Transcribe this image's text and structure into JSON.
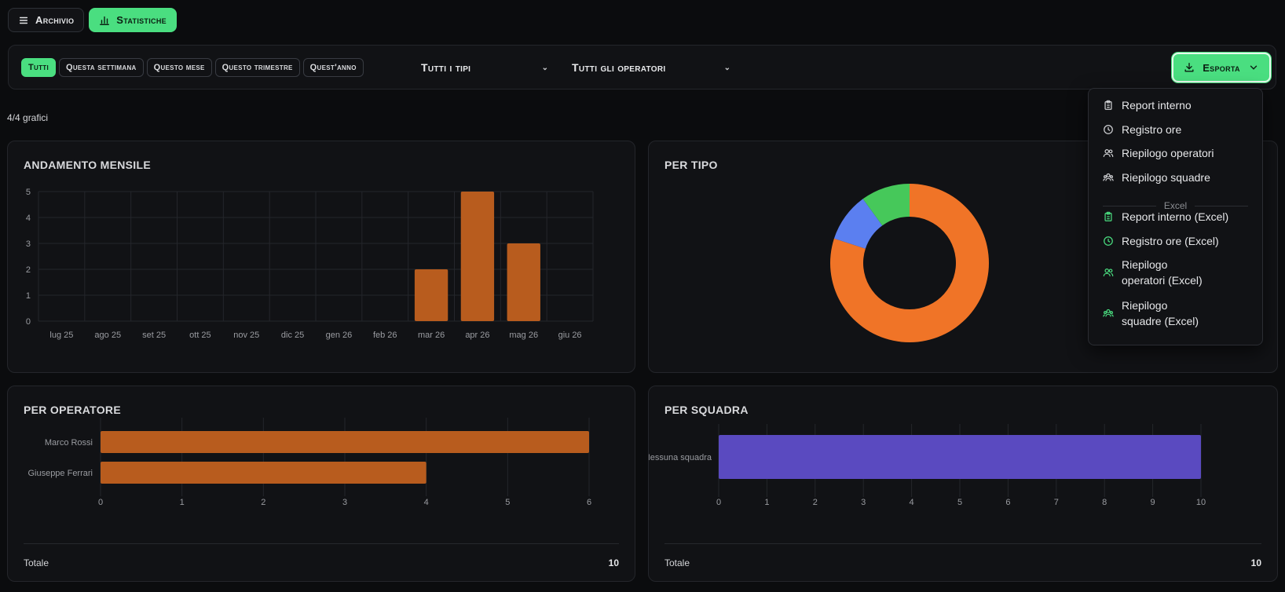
{
  "view_tabs": [
    {
      "label": "Archivio",
      "icon": "list-icon",
      "active": false
    },
    {
      "label": "Statistiche",
      "icon": "bar-chart-icon",
      "active": true
    }
  ],
  "filters": {
    "periods": [
      "Tutti",
      "Questa settimana",
      "Questo mese",
      "Questo trimestre",
      "Quest'anno"
    ],
    "active_period": "Tutti",
    "type_select": "Tutti i tipi",
    "operator_select": "Tutti gli operatori",
    "export_label": "Esporta"
  },
  "count_label": "4/4 grafici",
  "right_stub": "A",
  "colors": {
    "accent": "#4ade80",
    "bar_orange": "#b85c1e",
    "donut_orange": "#f07427",
    "donut_blue": "#5b7ff0",
    "donut_green": "#46c85a",
    "team_purple": "#5a4ac0"
  },
  "cards": {
    "monthly": {
      "title": "ANDAMENTO MENSILE"
    },
    "by_type": {
      "title": "PER TIPO"
    },
    "by_operator": {
      "title": "PER OPERATORE",
      "footer_label": "Totale",
      "footer_value": "10"
    },
    "by_team": {
      "title": "PER SQUADRA",
      "footer_label": "Totale",
      "footer_value": "10"
    }
  },
  "chart_data": [
    {
      "id": "monthly",
      "type": "bar",
      "title": "ANDAMENTO MENSILE",
      "categories": [
        "lug 25",
        "ago 25",
        "set 25",
        "ott 25",
        "nov 25",
        "dic 25",
        "gen 26",
        "feb 26",
        "mar 26",
        "apr 26",
        "mag 26",
        "giu 26"
      ],
      "values": [
        0,
        0,
        0,
        0,
        0,
        0,
        0,
        0,
        2,
        5,
        3,
        0
      ],
      "ylim": [
        0,
        5
      ],
      "yticks": [
        0,
        1,
        2,
        3,
        4,
        5
      ],
      "grid": true
    },
    {
      "id": "by_type",
      "type": "pie",
      "title": "PER TIPO",
      "values": [
        8,
        1,
        1
      ],
      "colors": [
        "#f07427",
        "#5b7ff0",
        "#46c85a"
      ]
    },
    {
      "id": "by_operator",
      "type": "bar",
      "orientation": "horizontal",
      "title": "PER OPERATORE",
      "categories": [
        "Marco Rossi",
        "Giuseppe Ferrari"
      ],
      "values": [
        6,
        4
      ],
      "xlim": [
        0,
        6
      ],
      "xticks": [
        0,
        1,
        2,
        3,
        4,
        5,
        6
      ],
      "grid": true
    },
    {
      "id": "by_team",
      "type": "bar",
      "orientation": "horizontal",
      "title": "PER SQUADRA",
      "categories": [
        "Nessuna squadra"
      ],
      "values": [
        10
      ],
      "xlim": [
        0,
        10
      ],
      "xticks": [
        0,
        1,
        2,
        3,
        4,
        5,
        6,
        7,
        8,
        9,
        10
      ],
      "grid": true
    }
  ],
  "export_menu": {
    "items": [
      {
        "label": "Report interno",
        "icon": "clipboard-icon"
      },
      {
        "label": "Registro ore",
        "icon": "clock-icon"
      },
      {
        "label": "Riepilogo operatori",
        "icon": "users-icon"
      },
      {
        "label": "Riepilogo squadre",
        "icon": "team-icon"
      }
    ],
    "section_label": "Excel",
    "excel_items": [
      {
        "label": "Report interno (Excel)",
        "icon": "clipboard-icon"
      },
      {
        "label": "Registro ore (Excel)",
        "icon": "clock-icon"
      },
      {
        "label": "Riepilogo operatori (Excel)",
        "line1": "Riepilogo",
        "line2": "operatori (Excel)",
        "icon": "users-icon"
      },
      {
        "label": "Riepilogo squadre (Excel)",
        "line1": "Riepilogo",
        "line2": "squadre (Excel)",
        "icon": "team-icon"
      }
    ]
  }
}
